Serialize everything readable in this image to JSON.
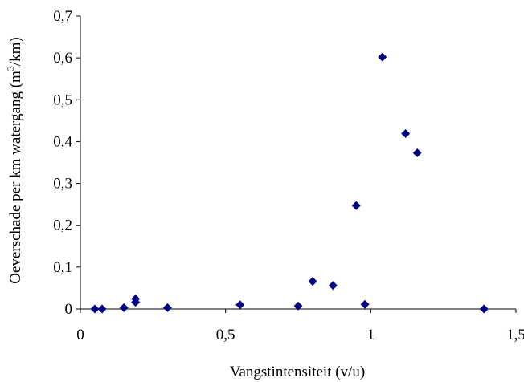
{
  "chart_data": {
    "type": "scatter",
    "xlabel": "Vangstintensiteit (v/u)",
    "ylabel_parts": {
      "before": "Oeverschade per km watergang (m",
      "sup": "3",
      "after": "/km)"
    },
    "xlim": [
      0,
      1.5
    ],
    "ylim": [
      0,
      0.7
    ],
    "x_ticks": [
      {
        "value": 0,
        "label": "0"
      },
      {
        "value": 0.5,
        "label": "0,5"
      },
      {
        "value": 1,
        "label": "1"
      },
      {
        "value": 1.5,
        "label": "1,5"
      }
    ],
    "y_ticks": [
      {
        "value": 0,
        "label": "0"
      },
      {
        "value": 0.1,
        "label": "0,1"
      },
      {
        "value": 0.2,
        "label": "0,2"
      },
      {
        "value": 0.3,
        "label": "0,3"
      },
      {
        "value": 0.4,
        "label": "0,4"
      },
      {
        "value": 0.5,
        "label": "0,5"
      },
      {
        "value": 0.6,
        "label": "0,6"
      },
      {
        "value": 0.7,
        "label": "0,7"
      }
    ],
    "grid": false,
    "legend": "none",
    "marker": "diamond",
    "marker_color": "#000080",
    "series": [
      {
        "points": [
          {
            "x": 0.05,
            "y": 0.0
          },
          {
            "x": 0.075,
            "y": 0.0
          },
          {
            "x": 0.15,
            "y": 0.003
          },
          {
            "x": 0.19,
            "y": 0.016
          },
          {
            "x": 0.19,
            "y": 0.024
          },
          {
            "x": 0.3,
            "y": 0.003
          },
          {
            "x": 0.55,
            "y": 0.01
          },
          {
            "x": 0.75,
            "y": 0.007
          },
          {
            "x": 0.8,
            "y": 0.066
          },
          {
            "x": 0.87,
            "y": 0.056
          },
          {
            "x": 0.95,
            "y": 0.247
          },
          {
            "x": 0.98,
            "y": 0.011
          },
          {
            "x": 1.04,
            "y": 0.602
          },
          {
            "x": 1.12,
            "y": 0.419
          },
          {
            "x": 1.16,
            "y": 0.373
          },
          {
            "x": 1.39,
            "y": 0.0
          }
        ]
      }
    ]
  }
}
